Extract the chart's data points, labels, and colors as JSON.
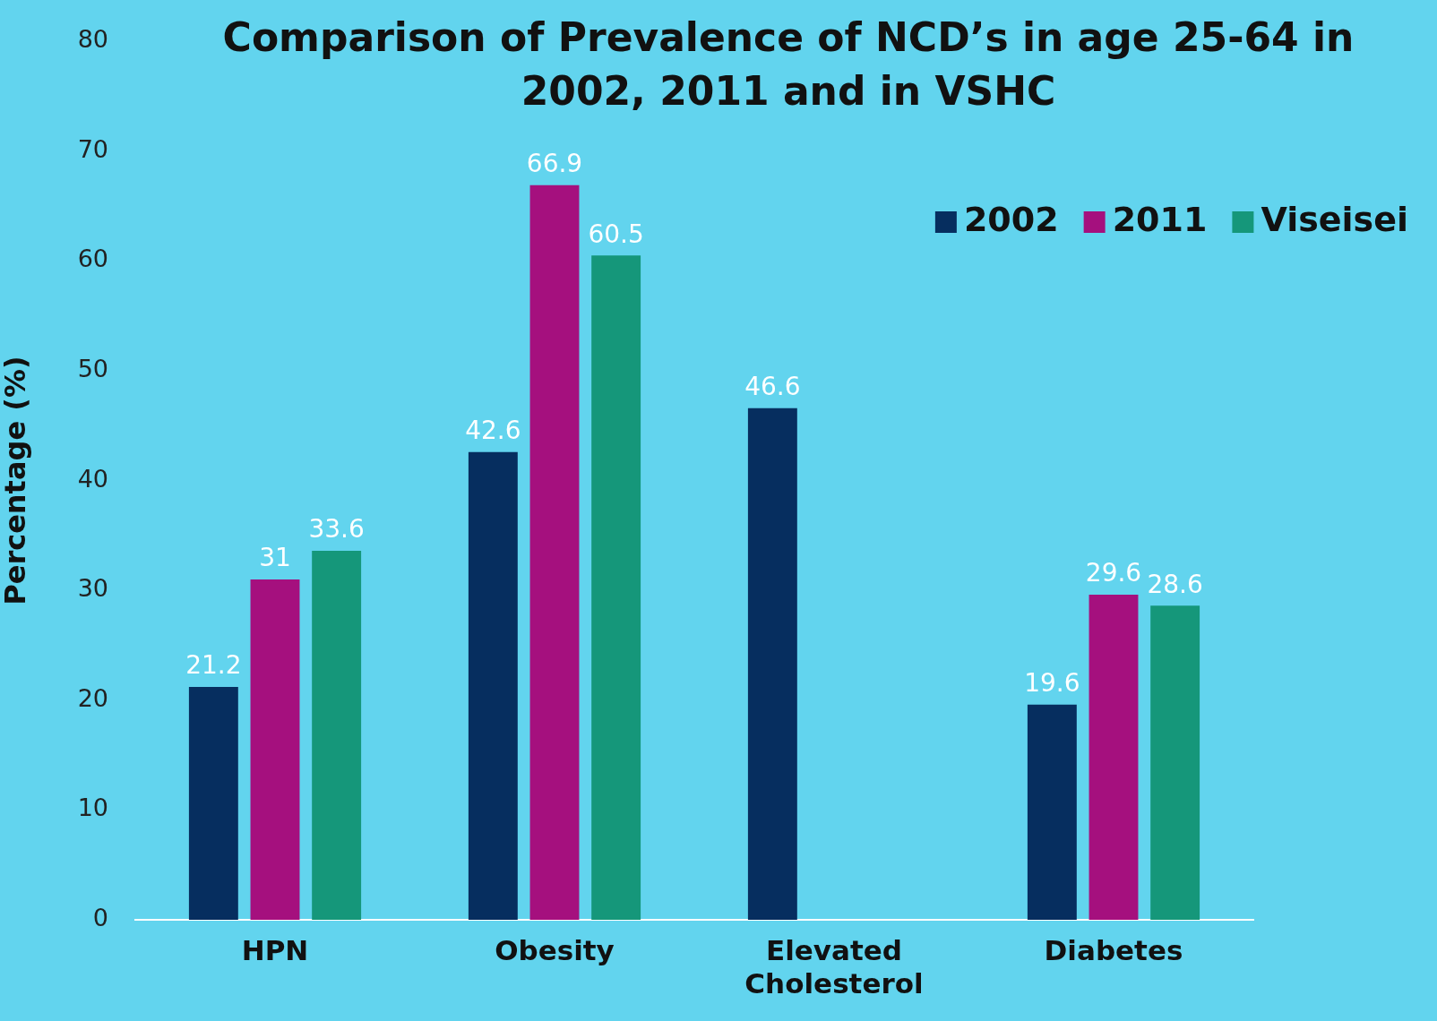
{
  "chart_data": {
    "type": "bar",
    "title": "Comparison of Prevalence of NCD’s in age 25-64 in 2002, 2011 and in VSHC",
    "ylabel": "Percentage (%)",
    "categories": [
      "HPN",
      "Obesity",
      "Elevated Cholesterol",
      "Diabetes"
    ],
    "series": [
      {
        "name": "2002",
        "color": "#062e5f",
        "values": [
          21.2,
          42.6,
          46.6,
          19.6
        ]
      },
      {
        "name": "2011",
        "color": "#a5107e",
        "values": [
          31,
          66.9,
          null,
          29.6
        ]
      },
      {
        "name": "Viseisei",
        "color": "#15977a",
        "values": [
          33.6,
          60.5,
          null,
          28.6
        ]
      }
    ],
    "ylim": [
      0,
      80
    ],
    "yticks": [
      0,
      10,
      20,
      30,
      40,
      50,
      60,
      70,
      80
    ],
    "grid": false,
    "legend": "top right",
    "data_labels": true
  }
}
